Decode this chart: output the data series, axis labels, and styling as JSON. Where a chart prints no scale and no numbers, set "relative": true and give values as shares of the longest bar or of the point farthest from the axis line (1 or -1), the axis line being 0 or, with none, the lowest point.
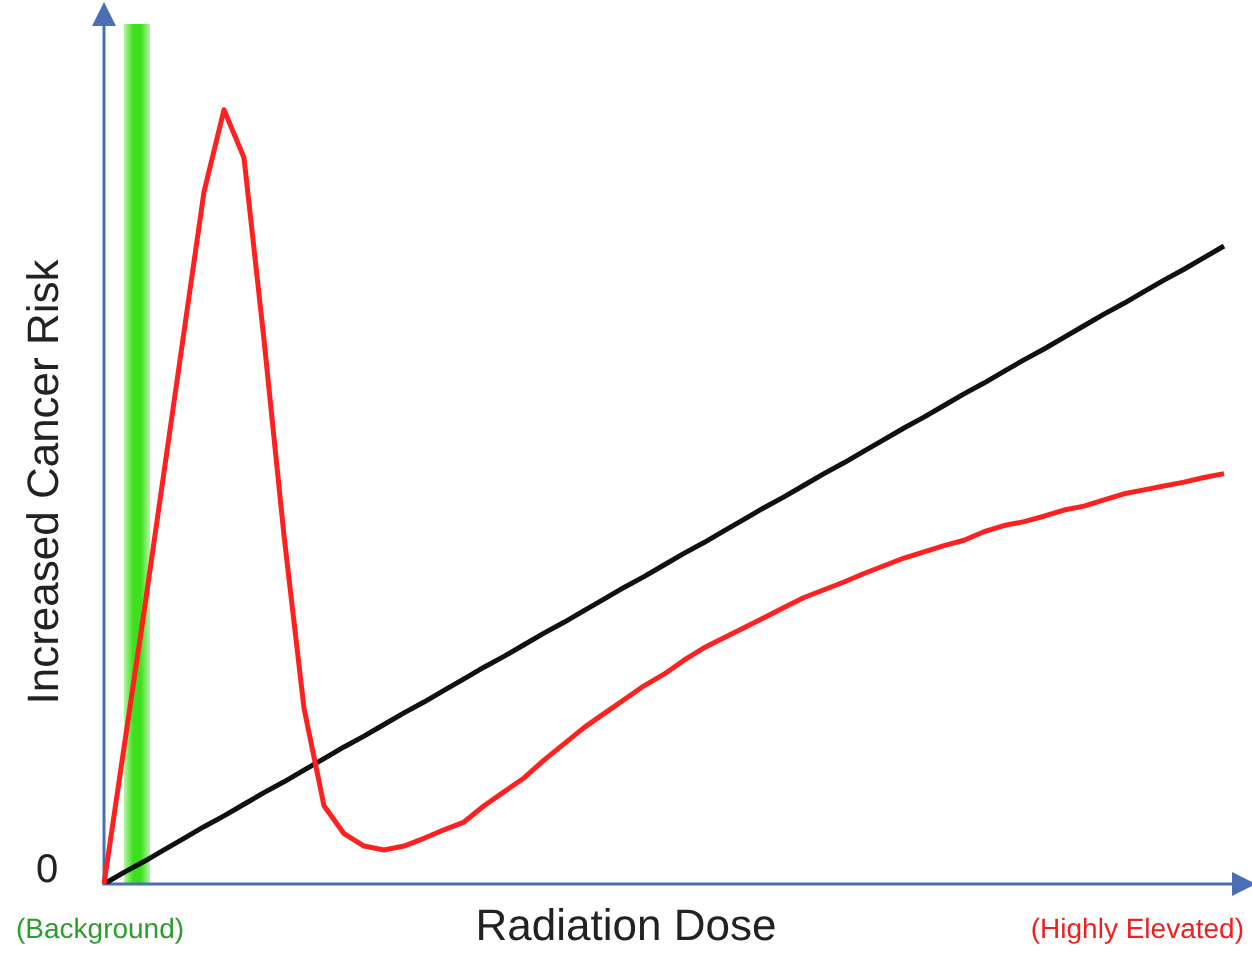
{
  "chart_data": {
    "type": "line",
    "relative": true,
    "xlabel": "Radiation Dose",
    "ylabel": "Increased Cancer Risk",
    "annotations": [
      "0",
      "(Background)",
      "(Highly Elevated)"
    ],
    "legend": false,
    "marker": "none",
    "line_style": "solid",
    "categories": [
      null,
      null,
      null,
      null,
      null,
      null,
      null,
      null,
      null,
      null,
      null,
      null,
      null,
      null,
      null,
      null,
      null,
      null,
      null,
      null,
      null,
      null,
      null,
      null,
      null,
      null,
      null,
      null,
      null,
      null,
      null,
      null,
      null,
      null,
      null,
      null,
      null,
      null,
      null,
      null,
      null,
      null,
      null,
      null,
      null,
      null,
      null,
      null,
      null,
      null,
      null,
      null,
      null,
      null,
      null,
      null,
      null
    ],
    "series": [
      {
        "color": "#ff2020",
        "values": [
          0,
          0.176,
          0.351,
          0.532,
          0.713,
          0.894,
          1,
          0.938,
          0.703,
          0.45,
          0.227,
          0.101,
          0.065,
          0.049,
          0.044,
          0.049,
          0.059,
          0.07,
          0.08,
          0.101,
          0.119,
          0.137,
          0.16,
          0.181,
          0.202,
          0.22,
          0.238,
          0.256,
          0.271,
          0.289,
          0.305,
          0.318,
          0.331,
          0.344,
          0.357,
          0.37,
          0.38,
          0.39,
          0.401,
          0.411,
          0.421,
          0.429,
          0.437,
          0.444,
          0.455,
          0.463,
          0.468,
          0.475,
          0.483,
          0.488,
          0.496,
          0.504,
          0.509,
          0.514,
          0.519,
          0.525,
          0.53
        ]
      },
      {
        "color": "#111111",
        "values": [
          0,
          0.015,
          0.029,
          0.044,
          0.059,
          0.074,
          0.088,
          0.103,
          0.118,
          0.132,
          0.147,
          0.162,
          0.177,
          0.191,
          0.206,
          0.221,
          0.235,
          0.25,
          0.265,
          0.28,
          0.294,
          0.309,
          0.324,
          0.338,
          0.353,
          0.368,
          0.383,
          0.397,
          0.412,
          0.427,
          0.441,
          0.456,
          0.471,
          0.486,
          0.5,
          0.515,
          0.53,
          0.544,
          0.559,
          0.574,
          0.589,
          0.603,
          0.618,
          0.633,
          0.647,
          0.662,
          0.677,
          0.691,
          0.706,
          0.721,
          0.736,
          0.75,
          0.765,
          0.78,
          0.794,
          0.809,
          0.824
        ]
      }
    ]
  }
}
